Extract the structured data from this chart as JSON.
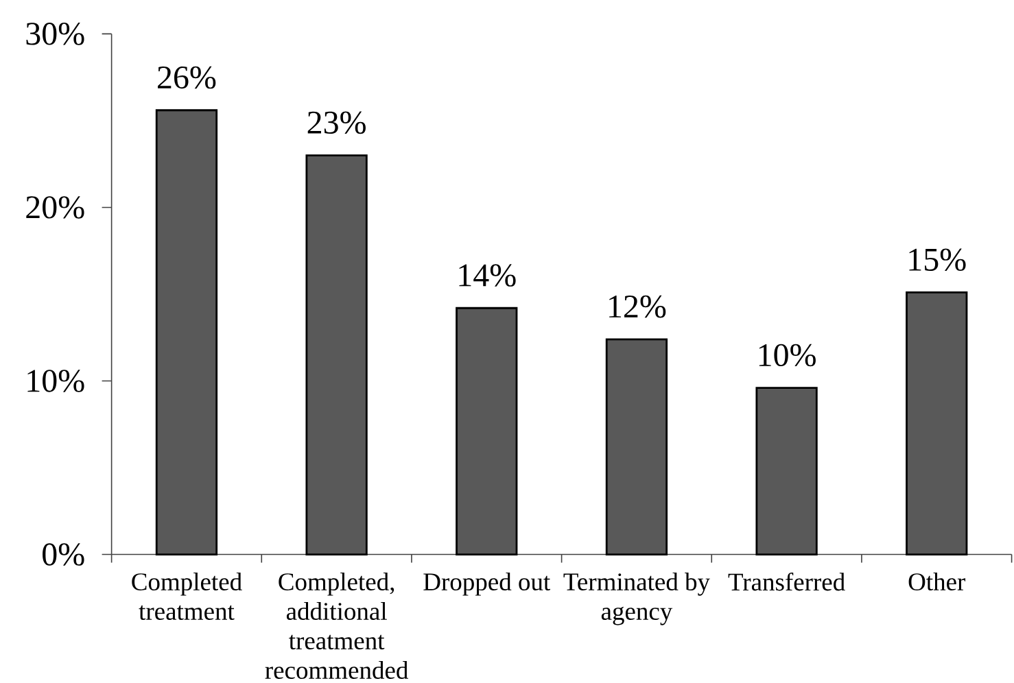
{
  "chart_data": {
    "type": "bar",
    "categories": [
      "Completed treatment",
      "Completed, additional treatment recommended",
      "Dropped out",
      "Terminated by agency",
      "Transferred",
      "Other"
    ],
    "values": [
      25.6,
      23.0,
      14.2,
      12.4,
      9.6,
      15.1
    ],
    "value_labels": [
      "26%",
      "23%",
      "14%",
      "12%",
      "10%",
      "15%"
    ],
    "color": "#595959",
    "ylim": [
      0,
      30
    ],
    "yticks": [
      {
        "value": 0,
        "label": "0%"
      },
      {
        "value": 10,
        "label": "10%"
      },
      {
        "value": 20,
        "label": "20%"
      },
      {
        "value": 30,
        "label": "30%"
      }
    ]
  }
}
